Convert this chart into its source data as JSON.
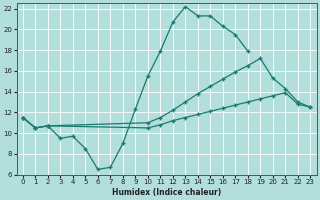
{
  "xlabel": "Humidex (Indice chaleur)",
  "bg_color": "#b2dfdb",
  "grid_color": "#ffffff",
  "line_color": "#1a7a6e",
  "xlim": [
    -0.5,
    23.5
  ],
  "ylim": [
    6,
    22.5
  ],
  "xticks": [
    0,
    1,
    2,
    3,
    4,
    5,
    6,
    7,
    8,
    9,
    10,
    11,
    12,
    13,
    14,
    15,
    16,
    17,
    18,
    19,
    20,
    21,
    22,
    23
  ],
  "yticks": [
    6,
    8,
    10,
    12,
    14,
    16,
    18,
    20,
    22
  ],
  "line1_x": [
    0,
    1,
    2,
    3,
    4,
    5,
    6,
    7,
    8,
    9,
    10,
    11,
    12,
    13,
    14,
    15,
    16,
    17,
    18,
    19,
    20
  ],
  "line1_y": [
    11.5,
    10.5,
    10.7,
    9.5,
    9.7,
    8.5,
    6.5,
    6.7,
    9.0,
    12.3,
    15.5,
    17.9,
    20.7,
    22.2,
    21.3,
    21.3,
    20.3,
    19.5,
    17.9,
    null,
    null
  ],
  "line2_x": [
    0,
    1,
    2,
    10,
    11,
    12,
    13,
    14,
    15,
    16,
    17,
    18,
    19,
    20,
    21,
    22,
    23
  ],
  "line2_y": [
    11.5,
    10.5,
    10.7,
    11.0,
    11.5,
    12.2,
    13.0,
    13.8,
    14.5,
    15.2,
    15.9,
    16.5,
    17.2,
    15.3,
    14.3,
    13.0,
    12.5
  ],
  "line3_x": [
    0,
    1,
    2,
    10,
    11,
    12,
    13,
    14,
    15,
    16,
    17,
    18,
    19,
    20,
    21,
    22,
    23
  ],
  "line3_y": [
    11.5,
    10.5,
    10.7,
    10.5,
    10.8,
    11.2,
    11.5,
    11.8,
    12.1,
    12.4,
    12.7,
    13.0,
    13.3,
    13.6,
    13.9,
    12.8,
    12.5
  ]
}
